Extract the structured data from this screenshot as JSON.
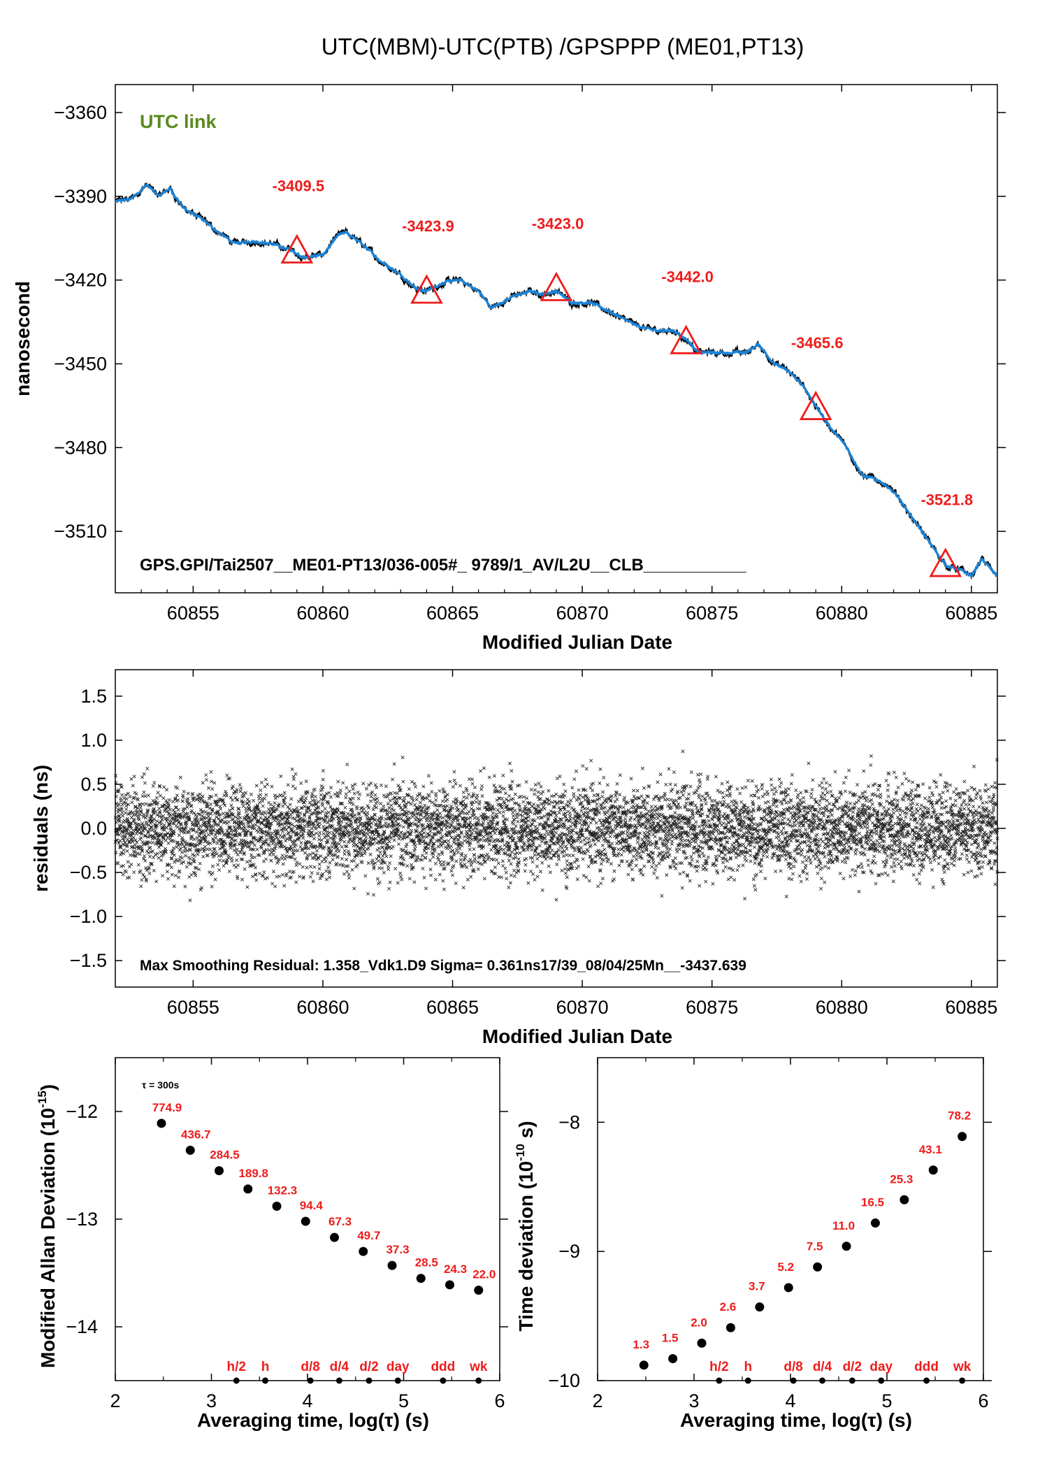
{
  "title": "UTC(MBM)-UTC(PTB)  /GPSPPP  (ME01,PT13)",
  "colors": {
    "series": "#1a82d6",
    "trace": "#000000",
    "marker": "#ee1c1c",
    "link_label": "#5a8a1e"
  },
  "chart_data": [
    {
      "type": "line",
      "name": "top",
      "title": "UTC(MBM)-UTC(PTB)  /GPSPPP  (ME01,PT13)",
      "xlabel": "Modified Julian Date",
      "ylabel": "nanosecond",
      "xlim": [
        60852,
        60886
      ],
      "ylim": [
        -3532,
        -3350
      ],
      "xticks": [
        60855,
        60860,
        60865,
        60870,
        60875,
        60880,
        60885
      ],
      "yticks": [
        -3360,
        -3390,
        -3420,
        -3450,
        -3480,
        -3510
      ],
      "ytick_labels": [
        "−3360",
        "−3390",
        "−3420",
        "−3450",
        "−3480",
        "−3510"
      ],
      "link_label": "UTC link",
      "annotation": "GPS.GPI/Tai2507__ME01-PT13/036-005#_  9789/1_AV/L2U__CLB___________",
      "trace_knots": [
        [
          60852,
          -3392
        ],
        [
          60852.6,
          -3391
        ],
        [
          60853.2,
          -3386
        ],
        [
          60853.7,
          -3390
        ],
        [
          60854.1,
          -3387
        ],
        [
          60854.6,
          -3394
        ],
        [
          60855.3,
          -3398
        ],
        [
          60856.0,
          -3403
        ],
        [
          60856.6,
          -3407
        ],
        [
          60857.3,
          -3406
        ],
        [
          60858.0,
          -3407
        ],
        [
          60858.7,
          -3409
        ],
        [
          60859.3,
          -3412
        ],
        [
          60860.0,
          -3411
        ],
        [
          60860.6,
          -3404
        ],
        [
          60860.9,
          -3403
        ],
        [
          60861.5,
          -3407
        ],
        [
          60862.2,
          -3413
        ],
        [
          60863.0,
          -3418
        ],
        [
          60863.6,
          -3423
        ],
        [
          60864.0,
          -3424
        ],
        [
          60864.6,
          -3421
        ],
        [
          60865.3,
          -3420
        ],
        [
          60866.0,
          -3424
        ],
        [
          60866.5,
          -3430
        ],
        [
          60867.3,
          -3426
        ],
        [
          60868.0,
          -3424
        ],
        [
          60868.5,
          -3425
        ],
        [
          60869.0,
          -3424
        ],
        [
          60869.6,
          -3428
        ],
        [
          60870.3,
          -3428
        ],
        [
          60871.0,
          -3431
        ],
        [
          60872.0,
          -3436
        ],
        [
          60872.7,
          -3438
        ],
        [
          60873.5,
          -3438
        ],
        [
          60874.0,
          -3441
        ],
        [
          60874.5,
          -3446
        ],
        [
          60875.5,
          -3446
        ],
        [
          60876.3,
          -3446
        ],
        [
          60876.8,
          -3443
        ],
        [
          60877.4,
          -3450
        ],
        [
          60878.0,
          -3453
        ],
        [
          60878.6,
          -3459
        ],
        [
          60879.0,
          -3465
        ],
        [
          60879.5,
          -3472
        ],
        [
          60880.2,
          -3480
        ],
        [
          60880.8,
          -3490
        ],
        [
          60881.5,
          -3492
        ],
        [
          60882.2,
          -3498
        ],
        [
          60883.0,
          -3509
        ],
        [
          60884.0,
          -3522
        ],
        [
          60884.6,
          -3524
        ],
        [
          60885.0,
          -3526
        ],
        [
          60885.4,
          -3520
        ],
        [
          60886,
          -3526
        ]
      ],
      "markers": [
        {
          "x": 60859,
          "y": -3409.5,
          "label": "-3409.5"
        },
        {
          "x": 60864,
          "y": -3423.9,
          "label": "-3423.9"
        },
        {
          "x": 60869,
          "y": -3423.0,
          "label": "-3423.0"
        },
        {
          "x": 60874,
          "y": -3442.0,
          "label": "-3442.0"
        },
        {
          "x": 60879,
          "y": -3465.6,
          "label": "-3465.6"
        },
        {
          "x": 60884,
          "y": -3521.8,
          "label": "-3521.8"
        }
      ],
      "grid": false
    },
    {
      "type": "scatter",
      "name": "residuals",
      "xlabel": "Modified Julian Date",
      "ylabel": "residuals (ns)",
      "xlim": [
        60852,
        60886
      ],
      "ylim": [
        -1.8,
        1.8
      ],
      "xticks": [
        60855,
        60860,
        60865,
        60870,
        60875,
        60880,
        60885
      ],
      "yticks": [
        1.5,
        1.0,
        0.5,
        0.0,
        -0.5,
        -1.0,
        -1.5
      ],
      "ytick_labels": [
        "1.5",
        "1.0",
        "0.5",
        "0.0",
        "−0.5",
        "−1.0",
        "−1.5"
      ],
      "annotation": "Max Smoothing Residual: 1.358_Vdk1.D9  Sigma= 0.361ns17/39_08/04/25Mn__-3437.639",
      "sigma": 0.361,
      "max_abs": 1.358,
      "marker": "x",
      "grid": false
    },
    {
      "type": "scatter",
      "name": "mdev",
      "xlabel": "Averaging time, log(τ) (s)",
      "ylabel": "Modified Allan Deviation (10",
      "ylabel_sup": "-15",
      "ylabel_tail": ")",
      "xlim": [
        2,
        6
      ],
      "ylim": [
        -14.5,
        -11.5
      ],
      "xticks": [
        2,
        3,
        4,
        5,
        6
      ],
      "yticks": [
        -12,
        -13,
        -14
      ],
      "ytick_labels": [
        "−12",
        "−13",
        "−14"
      ],
      "tau_note": "τ = 300s",
      "x": [
        2.48,
        2.78,
        3.08,
        3.38,
        3.68,
        3.98,
        4.28,
        4.58,
        4.88,
        5.18,
        5.48,
        5.78
      ],
      "y": [
        -12.11,
        -12.36,
        -12.55,
        -12.72,
        -12.88,
        -13.02,
        -13.17,
        -13.3,
        -13.43,
        -13.55,
        -13.61,
        -13.66
      ],
      "value_labels": [
        "774.9",
        "436.7",
        "284.5",
        "189.8",
        "132.3",
        "94.4",
        "67.3",
        "49.7",
        "37.3",
        "28.5",
        "24.3",
        "22.0"
      ],
      "period_marks": [
        {
          "label": "h/2",
          "x": 3.26
        },
        {
          "label": "h",
          "x": 3.56
        },
        {
          "label": "d/8",
          "x": 4.03
        },
        {
          "label": "d/4",
          "x": 4.33
        },
        {
          "label": "d/2",
          "x": 4.64
        },
        {
          "label": "day",
          "x": 4.94
        },
        {
          "label": "ddd",
          "x": 5.41
        },
        {
          "label": "wk",
          "x": 5.78
        }
      ]
    },
    {
      "type": "scatter",
      "name": "tdev",
      "xlabel": "Averaging time, log(τ) (s)",
      "ylabel": "Time deviation (10",
      "ylabel_sup": "-10",
      "ylabel_tail": " s)",
      "xlim": [
        2,
        6
      ],
      "ylim": [
        -10,
        -7.5
      ],
      "xticks": [
        2,
        3,
        4,
        5,
        6
      ],
      "yticks": [
        -8,
        -9,
        -10
      ],
      "ytick_labels": [
        "−8",
        "−9",
        "−10"
      ],
      "x": [
        2.48,
        2.78,
        3.08,
        3.38,
        3.68,
        3.98,
        4.28,
        4.58,
        4.88,
        5.18,
        5.48,
        5.78
      ],
      "y": [
        -9.88,
        -9.83,
        -9.71,
        -9.59,
        -9.43,
        -9.28,
        -9.12,
        -8.96,
        -8.78,
        -8.6,
        -8.37,
        -8.11
      ],
      "value_labels": [
        "1.3",
        "1.5",
        "2.0",
        "2.6",
        "3.7",
        "5.2",
        "7.5",
        "11.0",
        "16.5",
        "25.3",
        "43.1",
        "78.2"
      ],
      "period_marks": [
        {
          "label": "h/2",
          "x": 3.26
        },
        {
          "label": "h",
          "x": 3.56
        },
        {
          "label": "d/8",
          "x": 4.03
        },
        {
          "label": "d/4",
          "x": 4.33
        },
        {
          "label": "d/2",
          "x": 4.64
        },
        {
          "label": "day",
          "x": 4.94
        },
        {
          "label": "ddd",
          "x": 5.41
        },
        {
          "label": "wk",
          "x": 5.78
        }
      ]
    }
  ]
}
